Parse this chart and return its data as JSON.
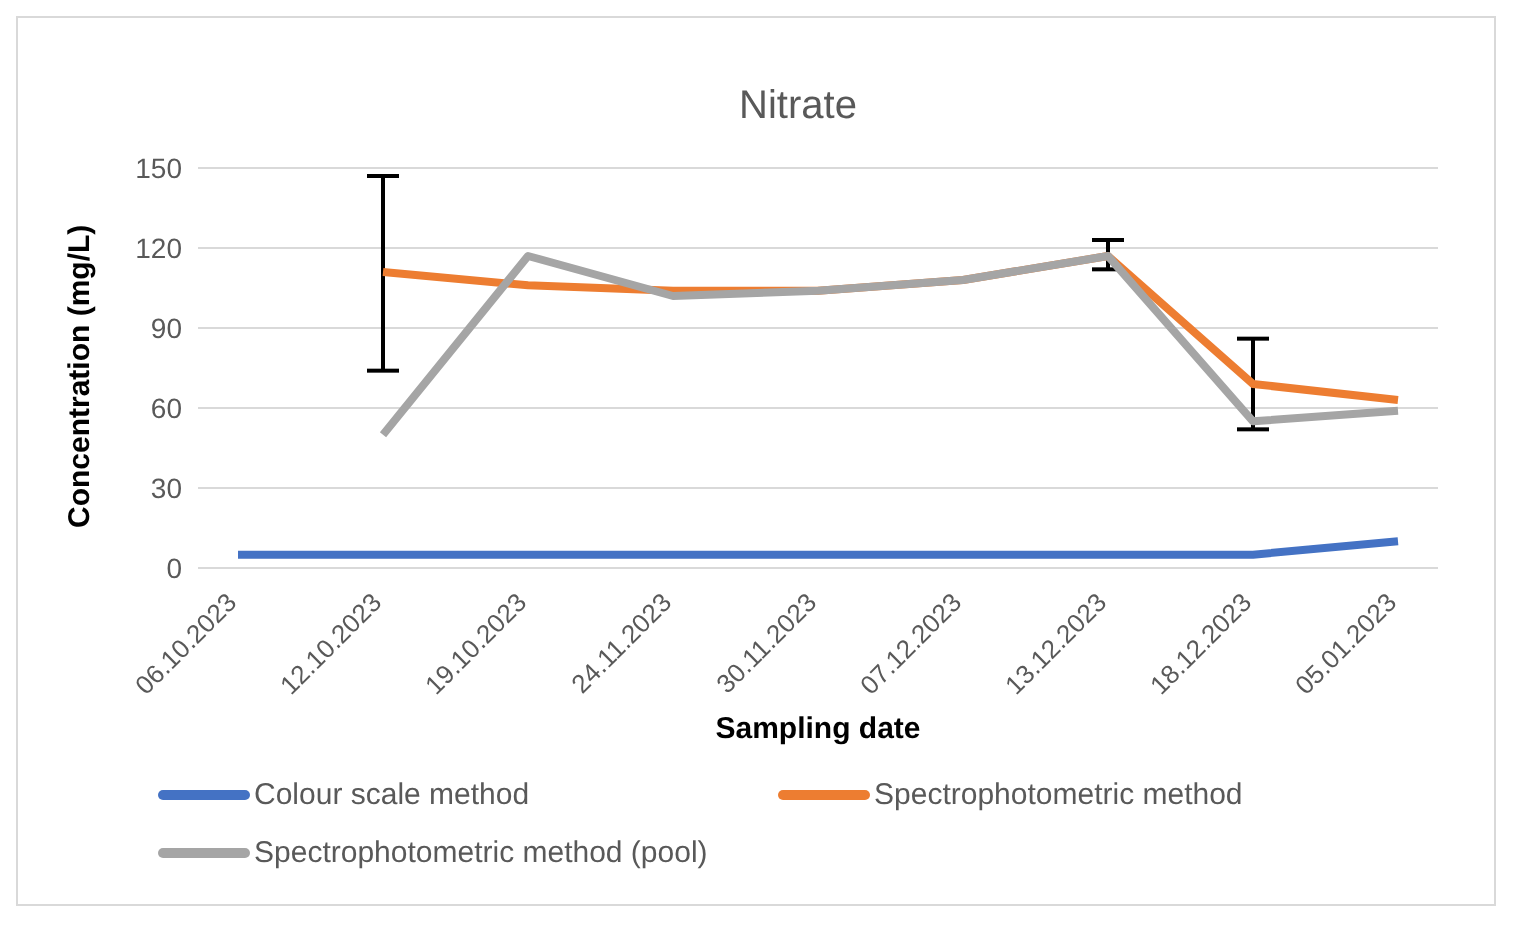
{
  "chart_data": {
    "type": "line",
    "title": "Nitrate",
    "xlabel": "Sampling date",
    "ylabel": "Concentration (mg/L)",
    "categories": [
      "06.10.2023",
      "12.10.2023",
      "19.10.2023",
      "24.11.2023",
      "30.11.2023",
      "07.12.2023",
      "13.12.2023",
      "18.12.2023",
      "05.01.2023"
    ],
    "series": [
      {
        "name": "Colour scale method",
        "color": "#4472c4",
        "values": [
          5,
          5,
          5,
          5,
          5,
          5,
          5,
          5,
          10
        ]
      },
      {
        "name": "Spectrophotometric method",
        "color": "#ed7d31",
        "values": [
          null,
          111,
          106,
          104,
          104,
          108,
          117,
          69,
          63
        ],
        "errors": [
          null,
          [
            74,
            147
          ],
          null,
          null,
          null,
          null,
          [
            112,
            123
          ],
          [
            52,
            86
          ],
          null
        ]
      },
      {
        "name": "Spectrophotometric method (pool)",
        "color": "#a5a5a5",
        "values": [
          null,
          50,
          117,
          102,
          104,
          108,
          117,
          55,
          59
        ]
      }
    ],
    "ylim": [
      0,
      150
    ],
    "yticks": [
      0,
      30,
      60,
      90,
      120,
      150
    ],
    "grid": "y",
    "legend": "bottom",
    "marker": "none",
    "line_style": "solid"
  }
}
